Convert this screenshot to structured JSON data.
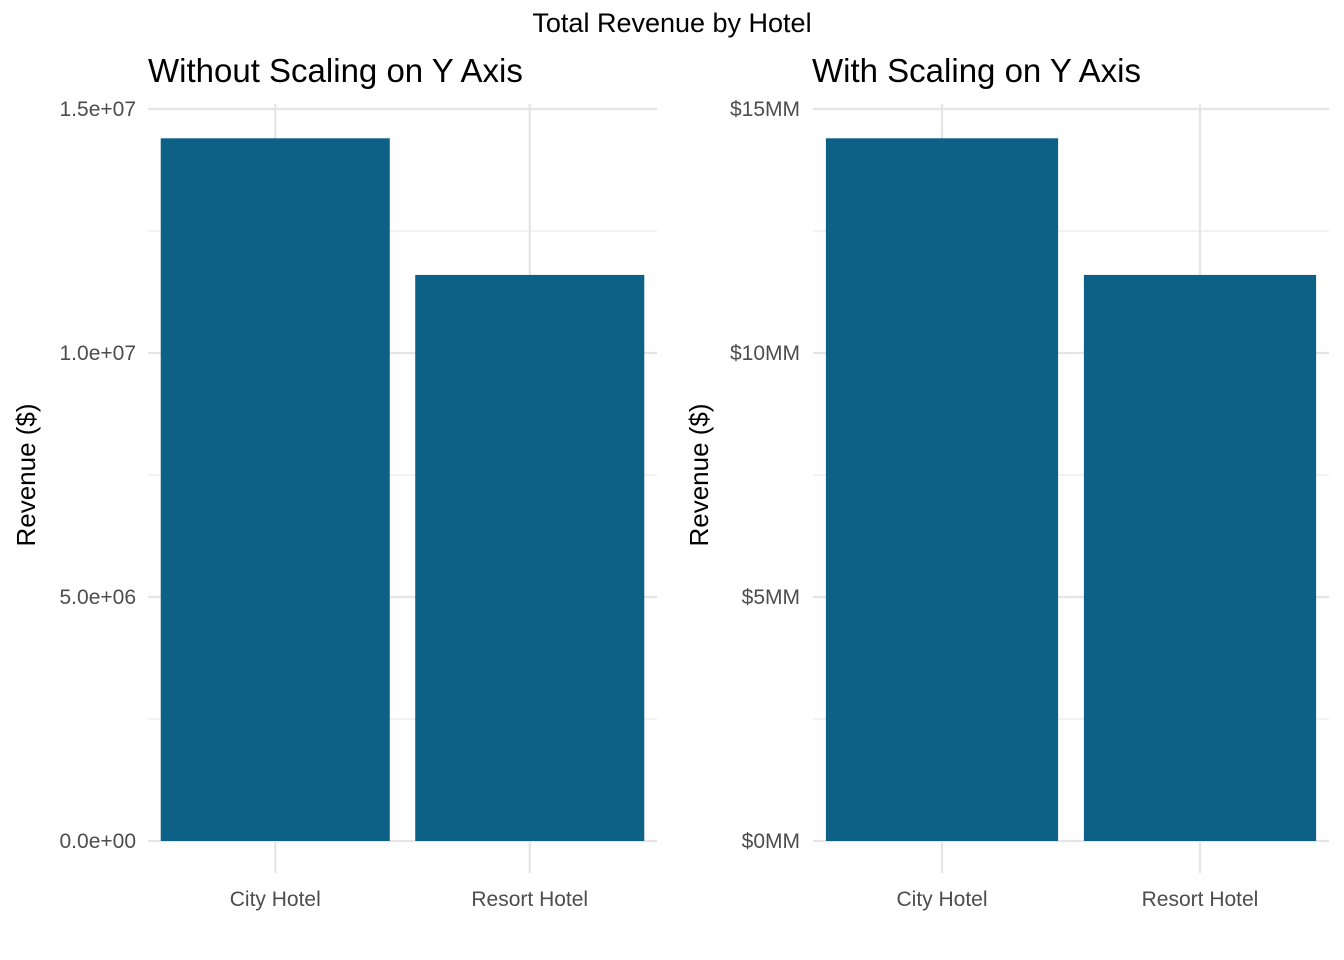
{
  "figure_title": "Total Revenue by Hotel",
  "bar_color": "#0e6186",
  "chart_data": [
    {
      "type": "bar",
      "title": "Without Scaling on Y Axis",
      "xlabel": "",
      "ylabel": "Revenue ($)",
      "categories": [
        "City Hotel",
        "Resort Hotel"
      ],
      "values": [
        14400000,
        11600000
      ],
      "ylim": [
        0,
        15000000
      ],
      "yticks": [
        0,
        5000000,
        10000000,
        15000000
      ],
      "ytick_labels": [
        "0.0e+00",
        "5.0e+06",
        "1.0e+07",
        "1.5e+07"
      ],
      "grid": true,
      "legend": "none"
    },
    {
      "type": "bar",
      "title": "With Scaling on Y Axis",
      "xlabel": "",
      "ylabel": "Revenue ($)",
      "categories": [
        "City Hotel",
        "Resort Hotel"
      ],
      "values": [
        14400000,
        11600000
      ],
      "ylim": [
        0,
        15000000
      ],
      "yticks": [
        0,
        5000000,
        10000000,
        15000000
      ],
      "ytick_labels": [
        "$0MM",
        "$5MM",
        "$10MM",
        "$15MM"
      ],
      "grid": true,
      "legend": "none"
    }
  ]
}
